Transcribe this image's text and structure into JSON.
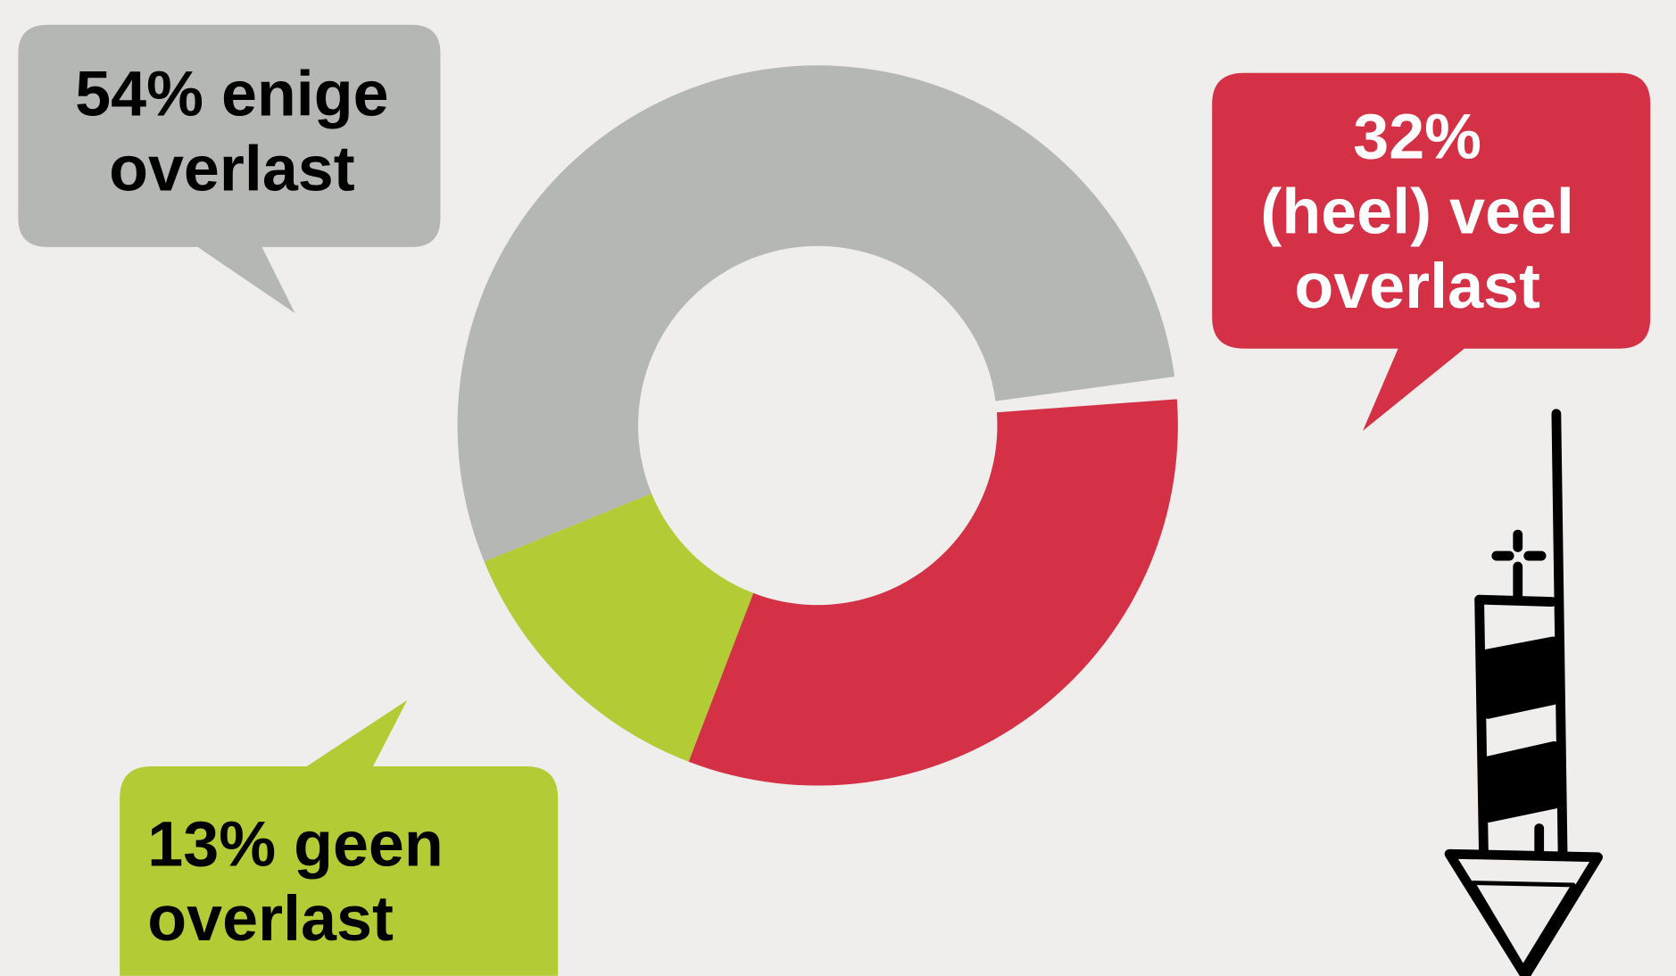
{
  "chart_data": {
    "type": "donut",
    "categories": [
      "(heel) veel overlast",
      "geen overlast",
      "enige overlast"
    ],
    "values": [
      32,
      13,
      54
    ],
    "value_labels": [
      [
        "32%",
        "(heel) veel",
        "overlast"
      ],
      [
        "13% geen",
        "overlast"
      ],
      [
        "54% enige",
        "overlast"
      ]
    ],
    "colors": [
      "#d43046",
      "#b3cb35",
      "#b5b7b4"
    ]
  }
}
